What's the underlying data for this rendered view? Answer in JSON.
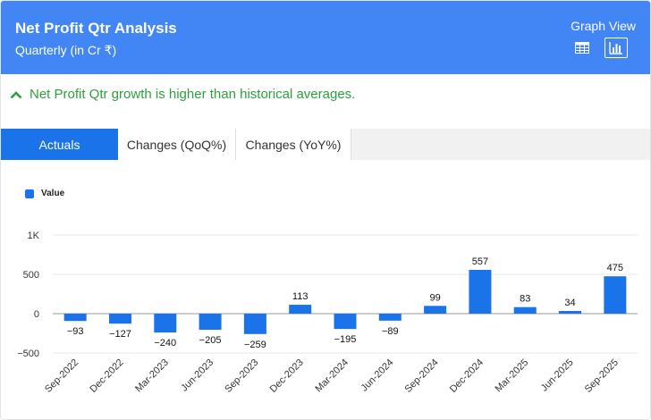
{
  "header": {
    "title": "Net Profit Qtr Analysis",
    "subtitle": "Quarterly (in Cr ₹)",
    "view_label": "Graph View",
    "accent": "#4285f4"
  },
  "insight": {
    "text": "Net Profit Qtr growth is higher than historical averages.",
    "icon": "chevron-up-icon",
    "color": "#2e9e3e"
  },
  "tabs": [
    {
      "label": "Actuals",
      "active": true
    },
    {
      "label": "Changes (QoQ%)",
      "active": false
    },
    {
      "label": "Changes (YoY%)",
      "active": false
    }
  ],
  "chart_data": {
    "type": "bar",
    "legend": "Value",
    "legend_position": "top-left",
    "bar_color": "#1a73e8",
    "categories": [
      "Sep-2022",
      "Dec-2022",
      "Mar-2023",
      "Jun-2023",
      "Sep-2023",
      "Dec-2023",
      "Mar-2024",
      "Jun-2024",
      "Sep-2024",
      "Dec-2024",
      "Mar-2025",
      "Jun-2025",
      "Sep-2025"
    ],
    "values": [
      -93,
      -127,
      -240,
      -205,
      -259,
      113,
      -195,
      -89,
      99,
      557,
      83,
      34,
      475
    ],
    "labels": [
      "−93",
      "−127",
      "−240",
      "−205",
      "−259",
      "113",
      "−195",
      "−89",
      "99",
      "557",
      "83",
      "34",
      "475"
    ],
    "yticks": [
      {
        "value": 1000,
        "label": "1K"
      },
      {
        "value": 500,
        "label": "500"
      },
      {
        "value": 0,
        "label": "0"
      },
      {
        "value": -500,
        "label": "−500"
      }
    ],
    "ylim": [
      -500,
      1000
    ],
    "grid": true
  }
}
